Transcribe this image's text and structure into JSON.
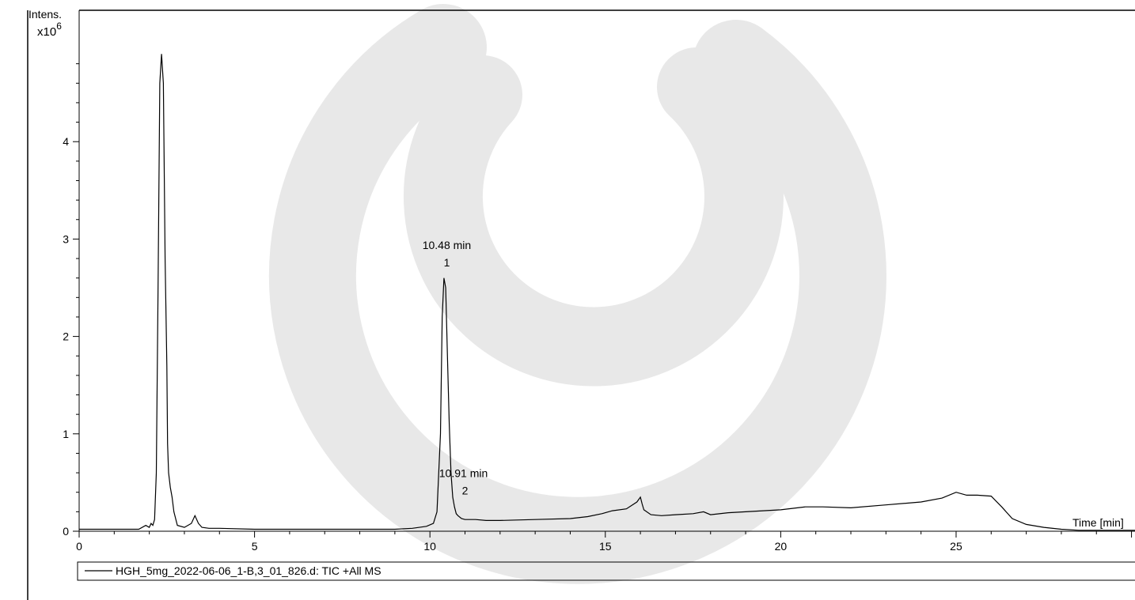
{
  "chart_data": {
    "type": "line",
    "ylabel_line1": "Intens.",
    "ylabel_mult": "x10",
    "ylabel_exp": "6",
    "xlabel": "Time [min]",
    "xlim": [
      0,
      30.1
    ],
    "ylim": [
      0,
      5.0
    ],
    "x_ticks": [
      0,
      5,
      10,
      15,
      20,
      25
    ],
    "y_ticks": [
      0,
      1,
      2,
      3,
      4
    ],
    "grid": false,
    "legend_position": "bottom",
    "series": [
      {
        "name": "HGH_5mg_2022-06-06_1-B,3_01_826.d: TIC +All MS",
        "color": "#000000",
        "x": [
          0.0,
          1.7,
          1.9,
          2.0,
          2.05,
          2.1,
          2.15,
          2.2,
          2.25,
          2.3,
          2.35,
          2.4,
          2.45,
          2.5,
          2.52,
          2.55,
          2.6,
          2.65,
          2.7,
          2.8,
          3.0,
          3.2,
          3.3,
          3.4,
          3.5,
          3.7,
          4.0,
          5.0,
          6.0,
          7.0,
          8.0,
          9.0,
          9.5,
          9.9,
          10.1,
          10.2,
          10.3,
          10.35,
          10.4,
          10.45,
          10.5,
          10.55,
          10.6,
          10.65,
          10.7,
          10.75,
          10.8,
          10.9,
          11.0,
          11.3,
          11.6,
          12.0,
          13.0,
          14.0,
          14.5,
          14.9,
          15.2,
          15.6,
          15.9,
          16.0,
          16.05,
          16.1,
          16.3,
          16.6,
          17.0,
          17.5,
          17.8,
          18.0,
          18.5,
          19.0,
          20.0,
          20.7,
          21.2,
          22.0,
          23.0,
          24.0,
          24.6,
          25.0,
          25.3,
          25.6,
          26.0,
          26.3,
          26.6,
          27.0,
          27.5,
          28.0,
          28.5,
          29.0,
          29.5,
          30.1
        ],
        "y": [
          0.02,
          0.02,
          0.06,
          0.04,
          0.08,
          0.06,
          0.12,
          0.6,
          2.5,
          4.6,
          4.9,
          4.6,
          2.8,
          1.7,
          0.9,
          0.6,
          0.45,
          0.35,
          0.2,
          0.06,
          0.04,
          0.08,
          0.16,
          0.08,
          0.04,
          0.03,
          0.03,
          0.02,
          0.02,
          0.02,
          0.02,
          0.02,
          0.03,
          0.05,
          0.08,
          0.2,
          1.0,
          2.2,
          2.6,
          2.5,
          1.8,
          1.1,
          0.6,
          0.35,
          0.25,
          0.18,
          0.16,
          0.13,
          0.12,
          0.12,
          0.11,
          0.11,
          0.12,
          0.13,
          0.15,
          0.18,
          0.21,
          0.23,
          0.3,
          0.35,
          0.28,
          0.22,
          0.17,
          0.16,
          0.17,
          0.18,
          0.2,
          0.17,
          0.19,
          0.2,
          0.22,
          0.25,
          0.25,
          0.24,
          0.27,
          0.3,
          0.34,
          0.4,
          0.37,
          0.37,
          0.36,
          0.25,
          0.13,
          0.07,
          0.04,
          0.02,
          0.01,
          0.01,
          0.01,
          0.01
        ]
      }
    ],
    "annotations": [
      {
        "time_label": "10.48 min",
        "peak_label": "1",
        "x": 10.48,
        "y": 2.62
      },
      {
        "time_label": "10.91 min",
        "peak_label": "2",
        "x": 10.91,
        "y": 0.16
      }
    ]
  }
}
